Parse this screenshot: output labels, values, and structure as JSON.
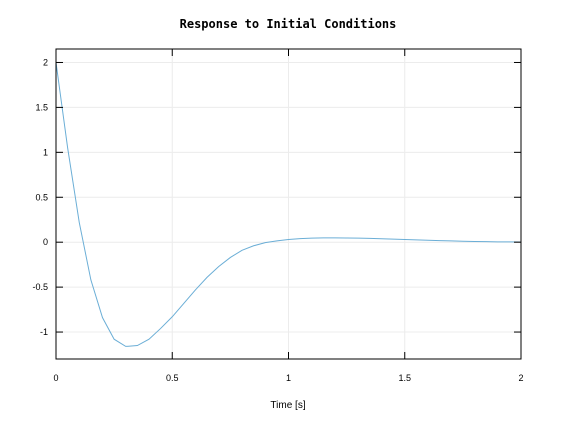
{
  "chart_data": {
    "type": "line",
    "title": "Response to Initial Conditions",
    "xlabel": "Time [s]",
    "ylabel": "",
    "xlim": [
      0,
      2
    ],
    "ylim": [
      -1.3,
      2.15
    ],
    "grid": true,
    "xticks": [
      0,
      0.5,
      1,
      1.5,
      2
    ],
    "xtick_labels": [
      "0",
      "0.5",
      "1",
      "1.5",
      "2"
    ],
    "yticks": [
      -1,
      -0.5,
      0,
      0.5,
      1,
      1.5,
      2
    ],
    "ytick_labels": [
      "-1",
      "-0.5",
      "0",
      "0.5",
      "1",
      "1.5",
      "2"
    ],
    "series": [
      {
        "color": "#6baed6",
        "x": [
          0,
          0.05,
          0.1,
          0.15,
          0.2,
          0.25,
          0.3,
          0.35,
          0.4,
          0.45,
          0.5,
          0.55,
          0.6,
          0.65,
          0.7,
          0.75,
          0.8,
          0.85,
          0.9,
          0.95,
          1.0,
          1.05,
          1.1,
          1.15,
          1.2,
          1.25,
          1.3,
          1.35,
          1.4,
          1.45,
          1.5,
          1.55,
          1.6,
          1.65,
          1.7,
          1.75,
          1.8,
          1.85,
          1.9,
          1.95,
          2.0
        ],
        "y": [
          2.0,
          1.05,
          0.22,
          -0.42,
          -0.84,
          -1.08,
          -1.16,
          -1.15,
          -1.08,
          -0.96,
          -0.83,
          -0.68,
          -0.53,
          -0.39,
          -0.27,
          -0.17,
          -0.09,
          -0.04,
          -0.005,
          0.015,
          0.03,
          0.04,
          0.045,
          0.048,
          0.048,
          0.047,
          0.045,
          0.042,
          0.038,
          0.034,
          0.03,
          0.026,
          0.022,
          0.018,
          0.014,
          0.011,
          0.008,
          0.006,
          0.004,
          0.003,
          0.002
        ]
      }
    ]
  }
}
